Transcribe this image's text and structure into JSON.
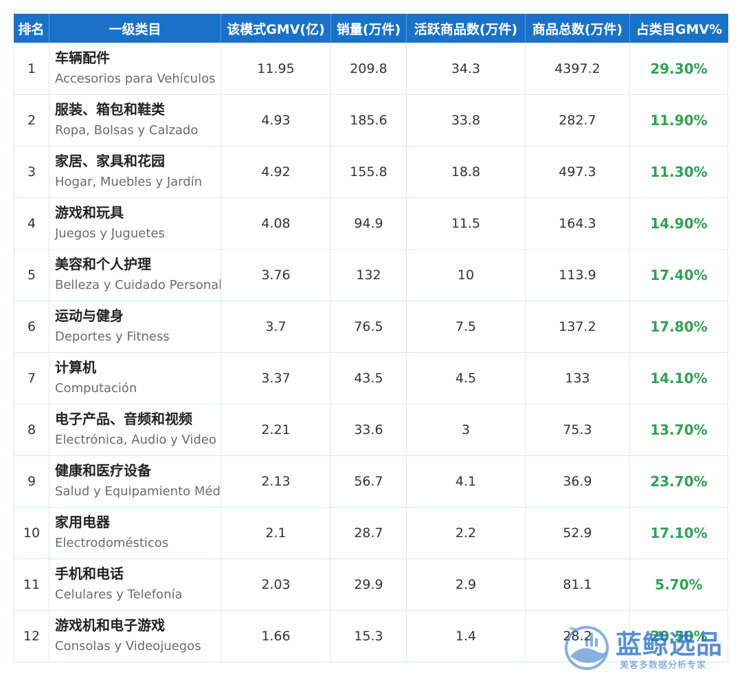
{
  "table": {
    "headers": [
      "排名",
      "一级类目",
      "该模式GMV(亿)",
      "销量(万件)",
      "活跃商品数(万件)",
      "商品总数(万件)",
      "占类目GMV%"
    ],
    "rows": [
      {
        "rank": "1",
        "cn": "车辆配件",
        "es": "Accesorios para Vehículos",
        "gmv": "11.95",
        "sales": "209.8",
        "active": "34.3",
        "total": "4397.2",
        "pct": "29.30%"
      },
      {
        "rank": "2",
        "cn": "服装、箱包和鞋类",
        "es": "Ropa, Bolsas y Calzado",
        "gmv": "4.93",
        "sales": "185.6",
        "active": "33.8",
        "total": "282.7",
        "pct": "11.90%"
      },
      {
        "rank": "3",
        "cn": "家居、家具和花园",
        "es": "Hogar, Muebles y Jardín",
        "gmv": "4.92",
        "sales": "155.8",
        "active": "18.8",
        "total": "497.3",
        "pct": "11.30%"
      },
      {
        "rank": "4",
        "cn": "游戏和玩具",
        "es": "Juegos y Juguetes",
        "gmv": "4.08",
        "sales": "94.9",
        "active": "11.5",
        "total": "164.3",
        "pct": "14.90%"
      },
      {
        "rank": "5",
        "cn": "美容和个人护理",
        "es": "Belleza y Cuidado Personal",
        "gmv": "3.76",
        "sales": "132",
        "active": "10",
        "total": "113.9",
        "pct": "17.40%"
      },
      {
        "rank": "6",
        "cn": "运动与健身",
        "es": "Deportes y Fitness",
        "gmv": "3.7",
        "sales": "76.5",
        "active": "7.5",
        "total": "137.2",
        "pct": "17.80%"
      },
      {
        "rank": "7",
        "cn": "计算机",
        "es": "Computación",
        "gmv": "3.37",
        "sales": "43.5",
        "active": "4.5",
        "total": "133",
        "pct": "14.10%"
      },
      {
        "rank": "8",
        "cn": "电子产品、音频和视频",
        "es": "Electrónica, Audio y Video",
        "gmv": "2.21",
        "sales": "33.6",
        "active": "3",
        "total": "75.3",
        "pct": "13.70%"
      },
      {
        "rank": "9",
        "cn": "健康和医疗设备",
        "es": "Salud y Equipamiento Médic",
        "gmv": "2.13",
        "sales": "56.7",
        "active": "4.1",
        "total": "36.9",
        "pct": "23.70%"
      },
      {
        "rank": "10",
        "cn": "家用电器",
        "es": "Electrodomésticos",
        "gmv": "2.1",
        "sales": "28.7",
        "active": "2.2",
        "total": "52.9",
        "pct": "17.10%"
      },
      {
        "rank": "11",
        "cn": "手机和电话",
        "es": "Celulares y Telefonía",
        "gmv": "2.03",
        "sales": "29.9",
        "active": "2.9",
        "total": "81.1",
        "pct": "5.70%"
      },
      {
        "rank": "12",
        "cn": "游戏机和电子游戏",
        "es": "Consolas y Videojuegos",
        "gmv": "1.66",
        "sales": "15.3",
        "active": "1.4",
        "total": "28.2",
        "pct": "20.50%"
      }
    ]
  },
  "watermark": {
    "title": "蓝鲸选品",
    "subtitle": "美客多数据分析专家",
    "logo_icon": "whale-icon"
  },
  "colors": {
    "header_bg": "#1a72c8",
    "percent_green": "#2ea352"
  }
}
